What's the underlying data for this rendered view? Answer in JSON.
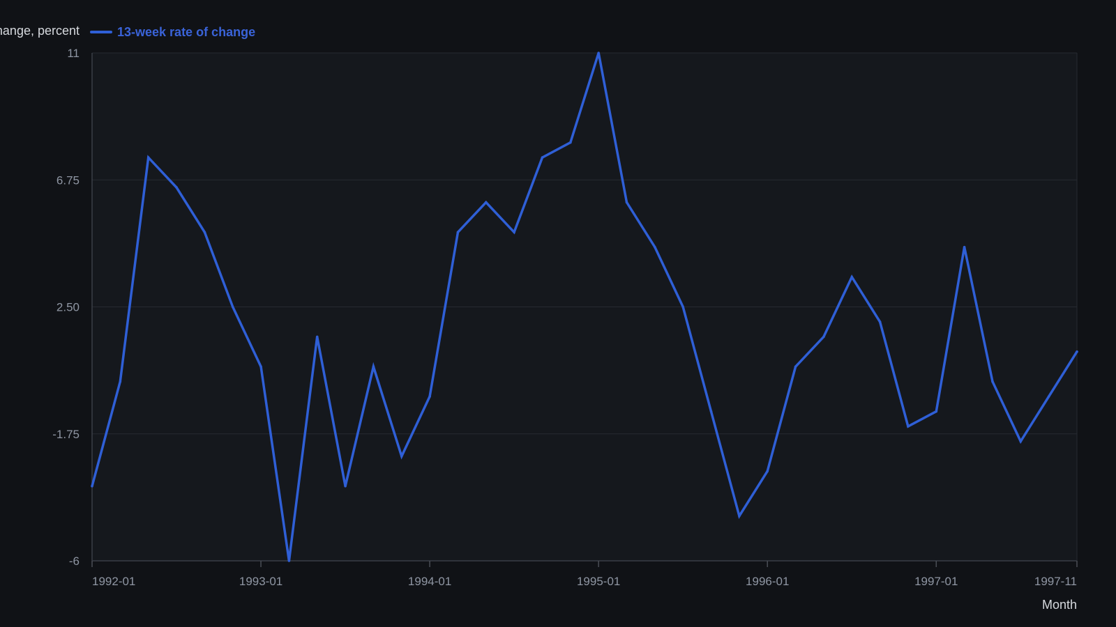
{
  "chart_data": {
    "type": "line",
    "ylabel": "Change, percent",
    "xlabel": "Month",
    "ylim": [
      -6,
      11
    ],
    "y_ticks": [
      "11",
      "6.75",
      "2.50",
      "-1.75",
      "-6"
    ],
    "y_tick_values": [
      11,
      6.75,
      2.5,
      -1.75,
      -6
    ],
    "x_ticks": [
      "1992-01",
      "1993-01",
      "1994-01",
      "1995-01",
      "1996-01",
      "1997-01",
      "1997-11"
    ],
    "grid": true,
    "legend_position": "top-left",
    "series": [
      {
        "name": "13-week rate of change",
        "color": "#2f5fd6",
        "x": [
          "1992-01",
          "1992-03",
          "1992-05",
          "1992-07",
          "1992-09",
          "1992-11",
          "1993-01",
          "1993-03",
          "1993-05",
          "1993-07",
          "1993-09",
          "1993-11",
          "1994-01",
          "1994-03",
          "1994-05",
          "1994-07",
          "1994-09",
          "1994-11",
          "1995-01",
          "1995-03",
          "1995-05",
          "1995-07",
          "1995-09",
          "1995-11",
          "1996-01",
          "1996-03",
          "1996-05",
          "1996-07",
          "1996-09",
          "1996-11",
          "1997-01",
          "1997-03",
          "1997-05",
          "1997-07",
          "1997-09",
          "1997-11"
        ],
        "values": [
          -3.5,
          0,
          7.5,
          6.5,
          5,
          2.5,
          0.5,
          -6,
          1.5,
          -3.5,
          0.5,
          -2.5,
          -0.5,
          5,
          6,
          5,
          7.5,
          8,
          11,
          6,
          4.5,
          2.5,
          -1,
          -4.5,
          -3,
          0.5,
          1.5,
          3.5,
          2,
          -1.5,
          -1,
          4.5,
          0,
          -2,
          -0.5,
          1
        ]
      }
    ]
  }
}
